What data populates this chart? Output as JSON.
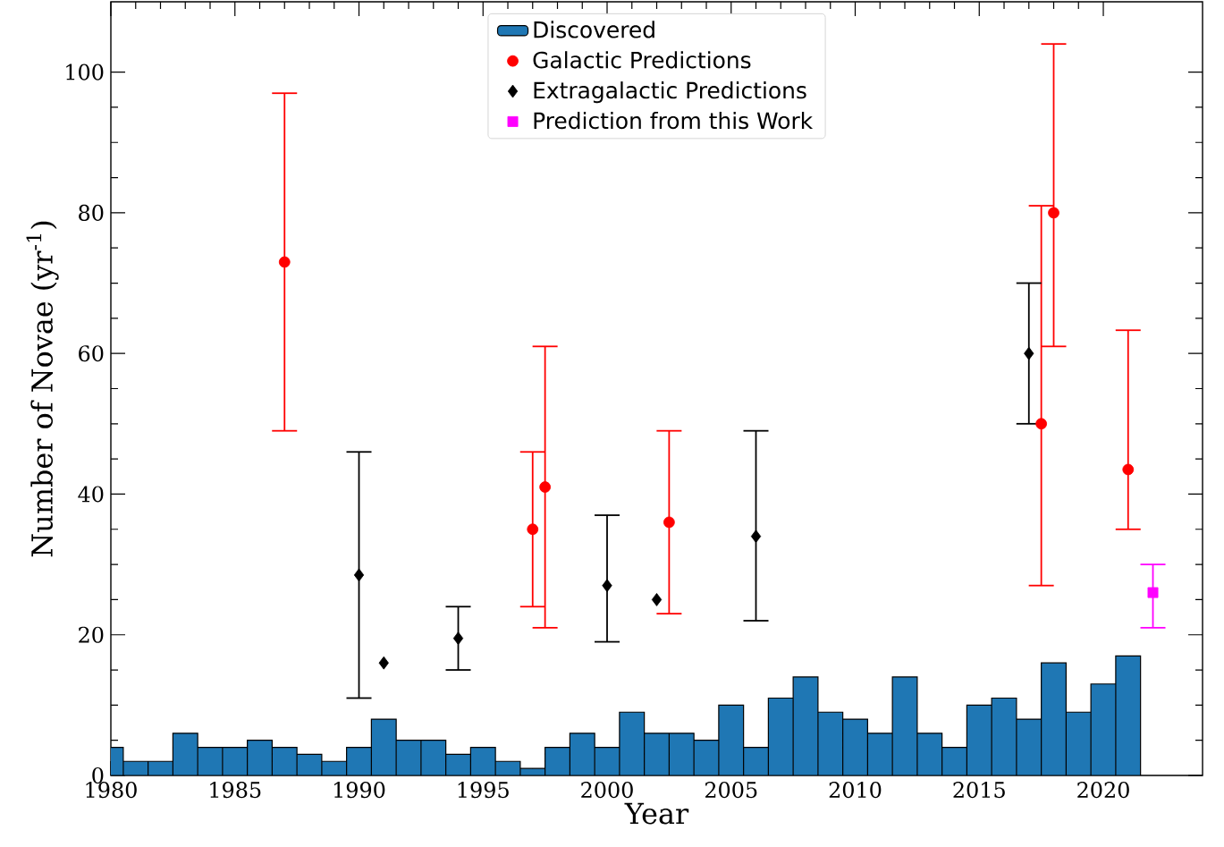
{
  "chart_data": {
    "type": "histogram",
    "xlabel": "Year",
    "ylabel": "Number of Novae (yr$^{-1}$)",
    "xlim": [
      1980,
      2024
    ],
    "ylim": [
      0,
      110
    ],
    "xticks": [
      1980,
      1985,
      1990,
      1995,
      2000,
      2005,
      2010,
      2015,
      2020
    ],
    "yticks": [
      0,
      20,
      40,
      60,
      80,
      100
    ],
    "legend": "top",
    "grid": false,
    "series": [
      {
        "name": "Discovered",
        "color": "#1f77b4",
        "bins": [
          1979.5,
          1980.5,
          1981.5,
          1982.5,
          1983.5,
          1984.5,
          1985.5,
          1986.5,
          1987.5,
          1988.5,
          1989.5,
          1990.5,
          1991.5,
          1992.5,
          1993.5,
          1994.5,
          1995.5,
          1996.5,
          1997.5,
          1998.5,
          1999.5,
          2000.5,
          2001.5,
          2002.5,
          2003.5,
          2004.5,
          2005.5,
          2006.5,
          2007.5,
          2008.5,
          2009.5,
          2010.5,
          2011.5,
          2012.5,
          2013.5,
          2014.5,
          2015.5,
          2016.5,
          2017.5,
          2018.5,
          2019.5,
          2020.5,
          2021.5
        ],
        "values": [
          4,
          2,
          2,
          6,
          4,
          4,
          5,
          4,
          3,
          2,
          4,
          8,
          5,
          5,
          3,
          4,
          2,
          1,
          4,
          6,
          4,
          9,
          6,
          6,
          5,
          10,
          4,
          11,
          14,
          9,
          8,
          6,
          14,
          6,
          4,
          10,
          11,
          8,
          16,
          9,
          13,
          17
        ]
      },
      {
        "type": "scatter",
        "name": "Galactic Predictions",
        "color": "#ff0000",
        "marker": "circle",
        "x": [
          1987,
          1997,
          1997.5,
          2002.5,
          2017.5,
          2018,
          2021
        ],
        "values": [
          73,
          35,
          41,
          36,
          50,
          80,
          43.5
        ],
        "errors": [
          [
            49,
            97
          ],
          [
            24,
            46
          ],
          [
            21,
            61
          ],
          [
            23,
            49
          ],
          [
            27,
            81
          ],
          [
            61,
            104
          ],
          [
            35,
            63.3
          ]
        ]
      },
      {
        "type": "scatter",
        "name": "Extragalactic Predictions",
        "color": "#000000",
        "marker": "diamond",
        "x": [
          1990,
          1991,
          1994,
          2000,
          2002,
          2006,
          2017
        ],
        "values": [
          28.5,
          16,
          19.5,
          27,
          25,
          34,
          60
        ],
        "errors": [
          [
            11,
            46
          ],
          null,
          [
            15,
            24
          ],
          [
            19,
            37
          ],
          null,
          [
            22,
            49
          ],
          [
            50,
            70
          ]
        ]
      },
      {
        "type": "scatter",
        "name": "Prediction from this Work",
        "color": "#ff00ff",
        "marker": "square",
        "x": [
          2022
        ],
        "values": [
          26
        ],
        "errors": [
          [
            21,
            30
          ]
        ]
      }
    ]
  }
}
